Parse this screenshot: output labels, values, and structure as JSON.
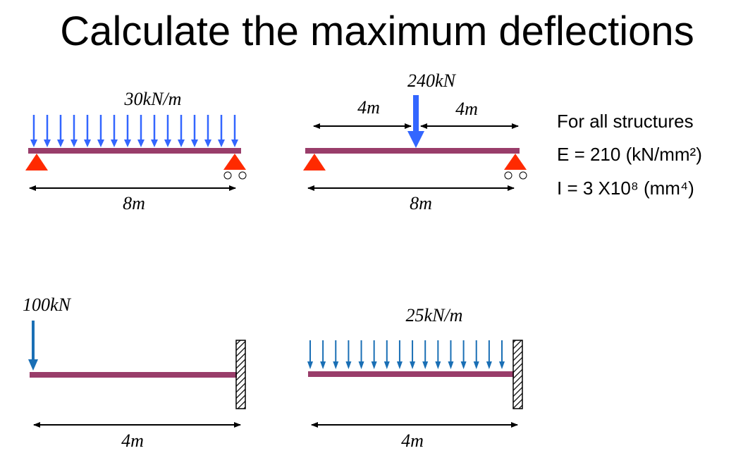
{
  "title": "Calculate the maximum deflections",
  "properties": {
    "heading": "For all structures",
    "E": "E = 210 (kN/mm²)",
    "I": "I = 3 X10⁸ (mm⁴)"
  },
  "beams": [
    {
      "load": "30kN/m",
      "span": "8m"
    },
    {
      "load": "240kN",
      "left": "4m",
      "right": "4m",
      "span": "8m"
    },
    {
      "load": "100kN",
      "span": "4m"
    },
    {
      "load": "25kN/m",
      "span": "4m"
    }
  ]
}
